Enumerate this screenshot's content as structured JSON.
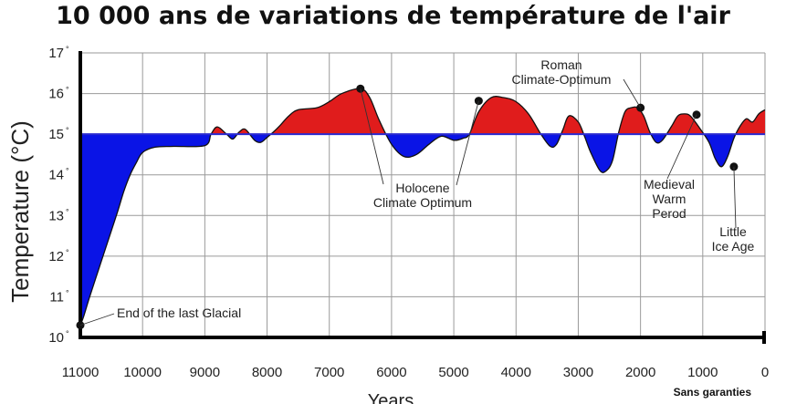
{
  "title": "10 000 ans de variations de température de l'air",
  "credit": "Sans garanties",
  "colors": {
    "warm": "#e01c1c",
    "cold": "#0a14e6",
    "baseline": "#2a2ad0",
    "grid": "#9a9a9a",
    "axis": "#000000"
  },
  "chart_data": {
    "type": "area",
    "title": "10 000 ans de variations de température de l'air",
    "xlabel": "Years",
    "ylabel": "Temperature (°C)",
    "x_reversed": true,
    "xlim": [
      11000,
      0
    ],
    "ylim": [
      10,
      17
    ],
    "baseline": 15,
    "xticks": [
      11000,
      10000,
      9000,
      8000,
      7000,
      6000,
      5000,
      4000,
      3000,
      2000,
      1000,
      0
    ],
    "yticks": [
      10,
      11,
      12,
      13,
      14,
      15,
      16,
      17
    ],
    "grid": true,
    "series": [
      {
        "name": "Temperature",
        "x": [
          11000,
          10950,
          10850,
          10700,
          10550,
          10400,
          10300,
          10200,
          10100,
          10000,
          9800,
          9500,
          9000,
          8900,
          8800,
          8650,
          8550,
          8450,
          8350,
          8200,
          8100,
          8000,
          7900,
          7800,
          7650,
          7500,
          7200,
          7000,
          6800,
          6500,
          6350,
          6200,
          6000,
          5800,
          5600,
          5400,
          5200,
          5000,
          4850,
          4750,
          4600,
          4400,
          4200,
          4000,
          3800,
          3600,
          3450,
          3350,
          3250,
          3150,
          3000,
          2900,
          2800,
          2650,
          2550,
          2450,
          2350,
          2250,
          2150,
          2050,
          1950,
          1850,
          1750,
          1650,
          1500,
          1400,
          1300,
          1200,
          1050,
          900,
          800,
          700,
          600,
          500,
          400,
          300,
          200,
          100,
          0
        ],
        "y": [
          10.3,
          10.5,
          11.0,
          11.7,
          12.4,
          13.1,
          13.6,
          14.0,
          14.3,
          14.55,
          14.68,
          14.7,
          14.72,
          15.0,
          15.18,
          15.0,
          14.88,
          15.05,
          15.12,
          14.85,
          14.8,
          14.92,
          15.05,
          15.2,
          15.45,
          15.6,
          15.65,
          15.8,
          16.0,
          16.12,
          15.9,
          15.35,
          14.75,
          14.45,
          14.5,
          14.75,
          14.95,
          14.85,
          14.9,
          15.0,
          15.55,
          15.9,
          15.9,
          15.8,
          15.5,
          15.0,
          14.7,
          14.75,
          15.1,
          15.45,
          15.3,
          14.95,
          14.55,
          14.1,
          14.1,
          14.35,
          15.05,
          15.55,
          15.65,
          15.65,
          15.45,
          15.05,
          14.8,
          14.85,
          15.2,
          15.45,
          15.5,
          15.45,
          15.15,
          14.8,
          14.4,
          14.2,
          14.45,
          14.9,
          15.2,
          15.38,
          15.3,
          15.5,
          15.6
        ]
      }
    ],
    "annotations": [
      {
        "label": [
          "End of the last Glacial"
        ],
        "x": 11000,
        "y": 10.3
      },
      {
        "label": [
          "Holocene",
          "Climate Optimum"
        ],
        "x": 6500,
        "y": 16.12
      },
      {
        "label": [
          "Holocene",
          "Climate Optimum"
        ],
        "x": 4600,
        "y": 15.82
      },
      {
        "label": [
          "Roman",
          "Climate-Optimum"
        ],
        "x": 2000,
        "y": 15.65
      },
      {
        "label": [
          "Medieval",
          "Warm",
          "Perod"
        ],
        "x": 1100,
        "y": 15.48
      },
      {
        "label": [
          "Little",
          "Ice Age"
        ],
        "x": 500,
        "y": 14.2
      }
    ],
    "annotation_text": {
      "glacial": "End of the last Glacial",
      "holocene": [
        "Holocene",
        "Climate Optimum"
      ],
      "roman": [
        "Roman",
        "Climate-Optimum"
      ],
      "medieval": [
        "Medieval",
        "Warm",
        "Perod"
      ],
      "lia": [
        "Little",
        "Ice Age"
      ]
    }
  }
}
